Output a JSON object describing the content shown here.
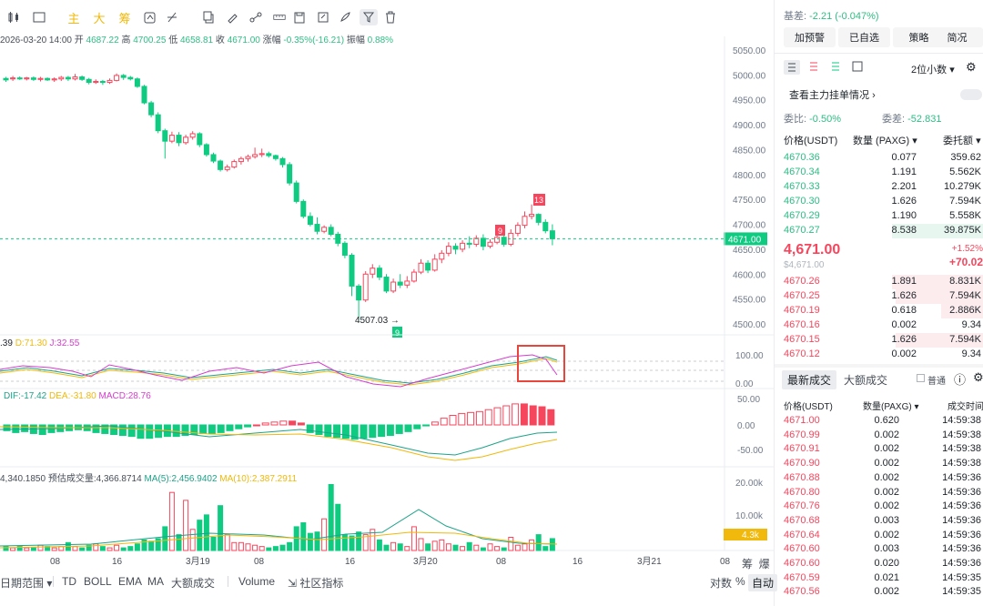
{
  "toolbar": {
    "indicators": [
      "主",
      "大",
      "筹"
    ]
  },
  "ohlc": {
    "date": "2026-03-20 14:00",
    "open_label": "开",
    "open": "4687.22",
    "high_label": "高",
    "high": "4700.25",
    "low_label": "低",
    "low": "4658.81",
    "close_label": "收",
    "close": "4671.00",
    "change_label": "涨幅",
    "change": "-0.35%(-16.21)",
    "amp_label": "振幅",
    "amplitude": "0.88%"
  },
  "kdj": {
    "k": ".39",
    "d": "D:71.30",
    "j": "J:32.55"
  },
  "macd": {
    "dif": "DIF:-17.42",
    "dea": "DEA:-31.80",
    "macd": "MACD:28.76"
  },
  "volume": {
    "value": "4,340.1850",
    "estimate": "预估成交量:4,366.8714",
    "ma5": "MA(5):2,456.9402",
    "ma10": "MA(10):2,387.2911"
  },
  "price_axis": [
    "5050.00",
    "5000.00",
    "4950.00",
    "4900.00",
    "4850.00",
    "4800.00",
    "4750.00",
    "4700.00",
    "4650.00",
    "4600.00",
    "4550.00",
    "4500.00"
  ],
  "current_price_tag": "4671.00",
  "low_marker": "4507.03",
  "td_markers": {
    "low": "9",
    "mid": "9",
    "high": "13"
  },
  "kdj_axis": [
    "100.00",
    "0.00"
  ],
  "macd_axis": [
    "50.00",
    "0.00",
    "-50.00"
  ],
  "vol_axis": [
    "20.00k",
    "10.00k"
  ],
  "vol_tag": "4.3k",
  "time_axis": [
    "08",
    "16",
    "3月19",
    "08",
    "16",
    "3月20",
    "08",
    "16",
    "3月21",
    "08"
  ],
  "bottom_bar": {
    "range": "日期范围",
    "items": [
      "TD",
      "BOLL",
      "EMA",
      "MA",
      "大额成交"
    ],
    "volume": "Volume",
    "community": "社区指标",
    "right_items": [
      "对数",
      "%",
      "自动"
    ],
    "corner": [
      "筹",
      "爆"
    ]
  },
  "right_panel": {
    "basis_label": "基差:",
    "basis": "-2.21 (-0.047%)",
    "buttons": [
      "加预警",
      "已自选",
      "策略",
      "简况"
    ],
    "precision": "2位小数",
    "main_orders": "查看主力挂单情况",
    "ratio_label": "委比:",
    "ratio": "-0.50%",
    "diff_label": "委差:",
    "diff": "-52.831",
    "headers": [
      "价格(USDT)",
      "数量 (PAXG)",
      "委托额"
    ],
    "asks": [
      {
        "price": "4670.36",
        "qty": "0.077",
        "amount": "359.62"
      },
      {
        "price": "4670.34",
        "qty": "1.191",
        "amount": "5.562K"
      },
      {
        "price": "4670.33",
        "qty": "2.201",
        "amount": "10.279K"
      },
      {
        "price": "4670.30",
        "qty": "1.626",
        "amount": "7.594K"
      },
      {
        "price": "4670.29",
        "qty": "1.190",
        "amount": "5.558K"
      },
      {
        "price": "4670.27",
        "qty": "8.538",
        "amount": "39.875K"
      }
    ],
    "last_price": "4,671.00",
    "last_sub": "$4,671.00",
    "pct": "+1.52%",
    "abs_change": "+70.02",
    "bids": [
      {
        "price": "4670.26",
        "qty": "1.891",
        "amount": "8.831K"
      },
      {
        "price": "4670.25",
        "qty": "1.626",
        "amount": "7.594K"
      },
      {
        "price": "4670.19",
        "qty": "0.618",
        "amount": "2.886K"
      },
      {
        "price": "4670.16",
        "qty": "0.002",
        "amount": "9.34"
      },
      {
        "price": "4670.15",
        "qty": "1.626",
        "amount": "7.594K"
      },
      {
        "price": "4670.12",
        "qty": "0.002",
        "amount": "9.34"
      }
    ],
    "trade_tabs": [
      "最新成交",
      "大额成交"
    ],
    "normal_label": "普通",
    "trade_headers": [
      "价格(USDT)",
      "数量(PAXG)",
      "成交时间"
    ],
    "trades": [
      {
        "price": "4671.00",
        "qty": "0.620",
        "time": "14:59:38"
      },
      {
        "price": "4670.99",
        "qty": "0.002",
        "time": "14:59:38"
      },
      {
        "price": "4670.91",
        "qty": "0.002",
        "time": "14:59:38"
      },
      {
        "price": "4670.90",
        "qty": "0.002",
        "time": "14:59:38"
      },
      {
        "price": "4670.88",
        "qty": "0.002",
        "time": "14:59:36"
      },
      {
        "price": "4670.80",
        "qty": "0.002",
        "time": "14:59:36"
      },
      {
        "price": "4670.76",
        "qty": "0.002",
        "time": "14:59:36"
      },
      {
        "price": "4670.68",
        "qty": "0.003",
        "time": "14:59:36"
      },
      {
        "price": "4670.64",
        "qty": "0.002",
        "time": "14:59:36"
      },
      {
        "price": "4670.60",
        "qty": "0.003",
        "time": "14:59:36"
      },
      {
        "price": "4670.60",
        "qty": "0.020",
        "time": "14:59:36"
      },
      {
        "price": "4670.59",
        "qty": "0.021",
        "time": "14:59:35"
      },
      {
        "price": "4670.56",
        "qty": "0.002",
        "time": "14:59:35"
      }
    ]
  },
  "colors": {
    "up": "#f6465d",
    "down": "#0ecb81",
    "accent": "#f0b90b"
  }
}
